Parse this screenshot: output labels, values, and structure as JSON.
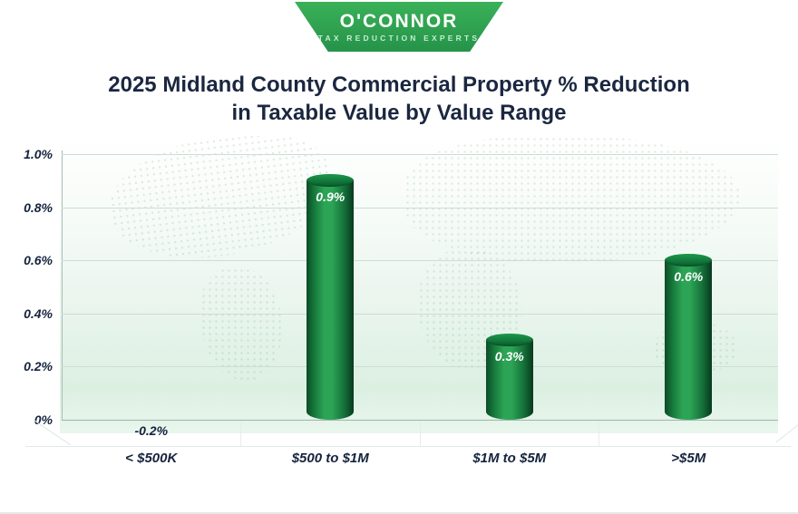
{
  "logo": {
    "name": "O'CONNOR",
    "tagline": "Tax Reduction Experts"
  },
  "title": {
    "line1": "2025 Midland County Commercial Property % Reduction",
    "line2": "in Taxable Value by Value Range"
  },
  "chart_data": {
    "type": "bar",
    "title": "2025 Midland County Commercial Property % Reduction in Taxable Value by Value Range",
    "categories": [
      "< $500K",
      "$500 to $1M",
      "$1M to $5M",
      ">$5M"
    ],
    "values": [
      -0.2,
      0.9,
      0.3,
      0.6
    ],
    "value_labels": [
      "-0.2%",
      "0.9%",
      "0.3%",
      "0.6%"
    ],
    "ylim": [
      0,
      1.0
    ],
    "yticks": [
      {
        "value": 0.0,
        "label": "0%"
      },
      {
        "value": 0.2,
        "label": "0.2%"
      },
      {
        "value": 0.4,
        "label": "0.4%"
      },
      {
        "value": 0.6,
        "label": "0.6%"
      },
      {
        "value": 0.8,
        "label": "0.8%"
      },
      {
        "value": 1.0,
        "label": "1.0%"
      }
    ],
    "grid": true,
    "legend": false,
    "bar_style": "3d-cylinder",
    "bar_color_dark": "#0b4c26",
    "bar_color_light": "#2ca455",
    "value_label_color": "#ffffff",
    "axis_label_color": "#15233d"
  },
  "colors": {
    "banner_green_top": "#3ab158",
    "banner_green_bottom": "#259349",
    "title_navy": "#1b2740",
    "plot_bg_green": "#dcf0e2"
  }
}
